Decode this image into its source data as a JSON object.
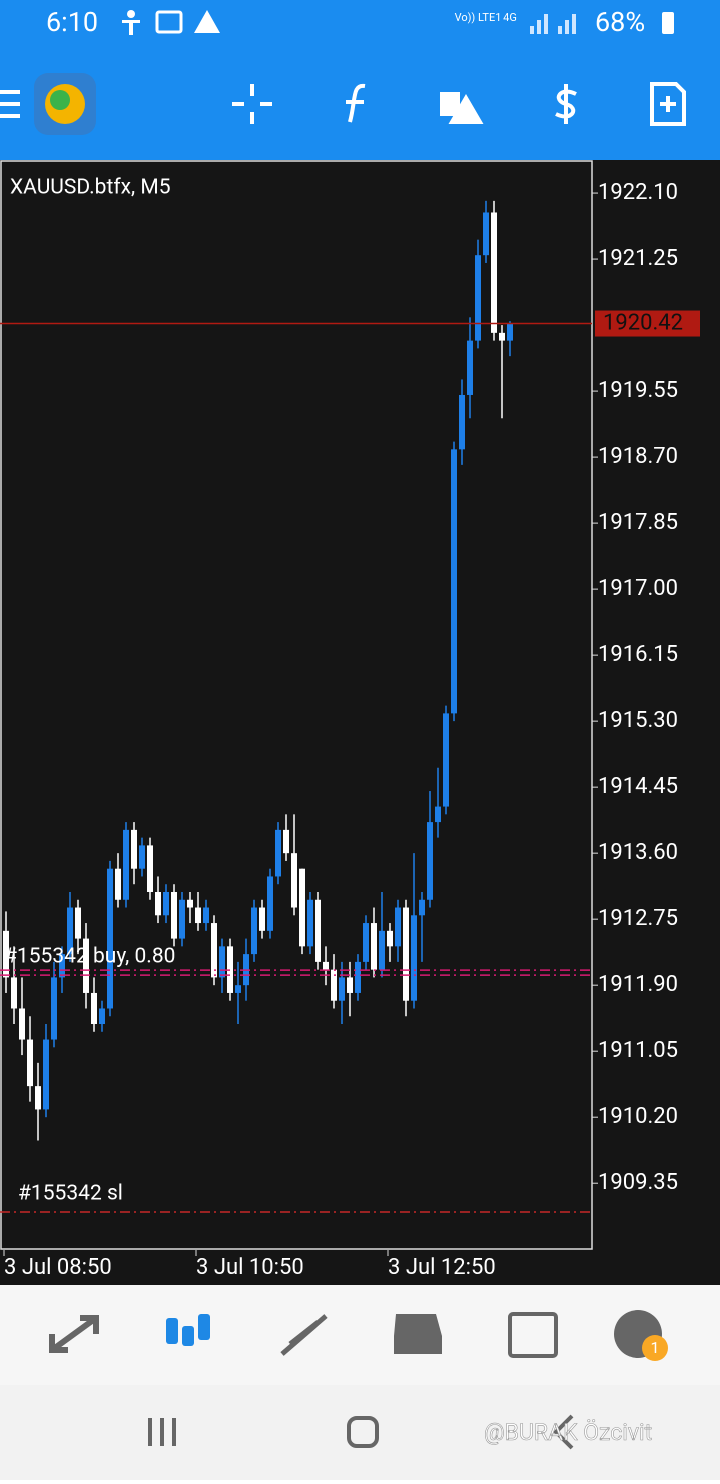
{
  "status_bar": {
    "time": "6:10",
    "network": "Vo)) LTE1",
    "signal": "4G",
    "battery": "68%"
  },
  "chart_data": {
    "type": "candlestick",
    "title": "XAUUSD.btfx, M5",
    "categories": [
      "3 Jul 08:50",
      null,
      null,
      null,
      null,
      null,
      null,
      null,
      null,
      null,
      null,
      null,
      null,
      null,
      null,
      null,
      null,
      null,
      null,
      null,
      null,
      null,
      null,
      null,
      "3 Jul 10:50",
      null,
      null,
      null,
      null,
      null,
      null,
      null,
      null,
      null,
      null,
      null,
      null,
      null,
      null,
      null,
      null,
      null,
      null,
      null,
      null,
      null,
      null,
      null,
      "3 Jul 12:50",
      null,
      null,
      null,
      null,
      null,
      null,
      null,
      null,
      null,
      null,
      null,
      null,
      null,
      null,
      null
    ],
    "open": [
      1912.6,
      1912.0,
      1911.6,
      1911.2,
      1910.6,
      1910.3,
      1911.2,
      1912.0,
      1912.3,
      1912.9,
      1912.5,
      1911.8,
      1911.4,
      1911.6,
      1913.4,
      1913.0,
      1913.9,
      1913.4,
      1913.7,
      1913.1,
      1912.8,
      1913.1,
      1912.5,
      1913.0,
      1912.9,
      1912.7,
      1912.7,
      1912.0,
      1912.4,
      1911.8,
      1911.9,
      1912.3,
      1912.9,
      1912.6,
      1913.3,
      1913.9,
      1913.6,
      1913.4,
      1912.4,
      1913.0,
      1912.2,
      1912.1,
      1911.7,
      1912.0,
      1911.8,
      1912.2,
      1912.7,
      1912.1,
      1912.6,
      1912.4,
      1912.9,
      1911.7,
      1912.8,
      1913.0,
      1914.0,
      1914.2,
      1915.4,
      1918.8,
      1919.5,
      1920.2,
      1921.3,
      1921.85,
      1920.3,
      1920.2
    ],
    "high": [
      1912.85,
      1912.4,
      1912.0,
      1911.5,
      1910.9,
      1911.4,
      1912.2,
      1912.4,
      1913.1,
      1913.0,
      1912.7,
      1912.0,
      1911.7,
      1913.5,
      1913.6,
      1914.0,
      1914.0,
      1913.8,
      1913.8,
      1913.3,
      1913.2,
      1913.2,
      1913.1,
      1913.1,
      1913.1,
      1913.0,
      1912.8,
      1912.5,
      1912.5,
      1912.2,
      1912.5,
      1913.0,
      1913.0,
      1913.4,
      1914.0,
      1914.1,
      1914.1,
      1913.4,
      1913.1,
      1913.1,
      1912.4,
      1912.3,
      1912.2,
      1912.2,
      1912.3,
      1912.8,
      1912.9,
      1913.1,
      1912.7,
      1913.0,
      1913.0,
      1913.6,
      1913.1,
      1914.4,
      1914.7,
      1915.5,
      1918.9,
      1919.7,
      1920.5,
      1921.5,
      1922.0,
      1922.0,
      1920.4,
      1920.45
    ],
    "low": [
      1911.8,
      1911.4,
      1911.0,
      1910.4,
      1909.9,
      1910.2,
      1911.1,
      1911.8,
      1912.2,
      1912.3,
      1911.6,
      1911.3,
      1911.3,
      1911.5,
      1912.9,
      1912.9,
      1913.2,
      1913.3,
      1913.0,
      1912.7,
      1912.7,
      1912.4,
      1912.4,
      1912.7,
      1912.6,
      1912.6,
      1911.9,
      1911.8,
      1911.7,
      1911.4,
      1911.7,
      1912.2,
      1912.5,
      1912.5,
      1913.2,
      1913.5,
      1912.8,
      1912.3,
      1912.3,
      1912.1,
      1911.9,
      1911.6,
      1911.4,
      1911.5,
      1911.7,
      1912.1,
      1912.0,
      1912.0,
      1912.2,
      1912.2,
      1911.5,
      1911.6,
      1912.2,
      1912.9,
      1913.8,
      1914.1,
      1915.3,
      1918.6,
      1919.2,
      1920.1,
      1921.2,
      1920.2,
      1919.2,
      1920.0
    ],
    "close": [
      1912.0,
      1911.6,
      1911.2,
      1910.6,
      1910.3,
      1911.2,
      1912.0,
      1912.3,
      1912.9,
      1912.5,
      1911.8,
      1911.4,
      1911.6,
      1913.4,
      1913.0,
      1913.9,
      1913.4,
      1913.7,
      1913.1,
      1912.8,
      1913.1,
      1912.5,
      1913.0,
      1912.9,
      1912.7,
      1912.9,
      1912.0,
      1912.4,
      1911.8,
      1911.9,
      1912.3,
      1912.9,
      1912.6,
      1913.3,
      1913.9,
      1913.6,
      1912.9,
      1912.4,
      1913.0,
      1912.2,
      1912.1,
      1911.7,
      1912.0,
      1911.8,
      1912.2,
      1912.7,
      1912.1,
      1912.6,
      1912.4,
      1912.9,
      1911.7,
      1912.8,
      1913.0,
      1914.0,
      1914.2,
      1915.4,
      1918.8,
      1919.5,
      1920.2,
      1921.3,
      1921.85,
      1920.3,
      1920.2,
      1920.42
    ],
    "up_color": "#1e7fe8",
    "down_color": "#ffffff",
    "ylim": [
      1908.49,
      1922.5
    ],
    "yticks": [
      {
        "value": 1922.1,
        "label": "1922.10"
      },
      1921.25,
      {
        "value": 1919.55,
        "label": "1919.55"
      },
      {
        "value": 1918.7,
        "label": "1918.70"
      },
      1917.85,
      {
        "value": 1917,
        "label": "1917.00"
      },
      1916.15,
      {
        "value": 1915.3,
        "label": "1915.30"
      },
      1914.45,
      {
        "value": 1913.6,
        "label": "1913.60"
      },
      1912.75,
      {
        "value": 1911.9,
        "label": "1911.90"
      },
      1911.05,
      {
        "value": 1910.2,
        "label": "1910.20"
      },
      1909.35
    ],
    "current_price": 1920.42,
    "current_color": "#b01a12",
    "levels": [
      {
        "label": "#155342 buy, 0.80",
        "price": 1912.03,
        "color": "#d81b72"
      },
      {
        "label": "#155342 sl",
        "price": 1908.98,
        "color": "#c62828"
      }
    ]
  },
  "nav_badge": "1",
  "watermark": "@BURAK Özcivit"
}
